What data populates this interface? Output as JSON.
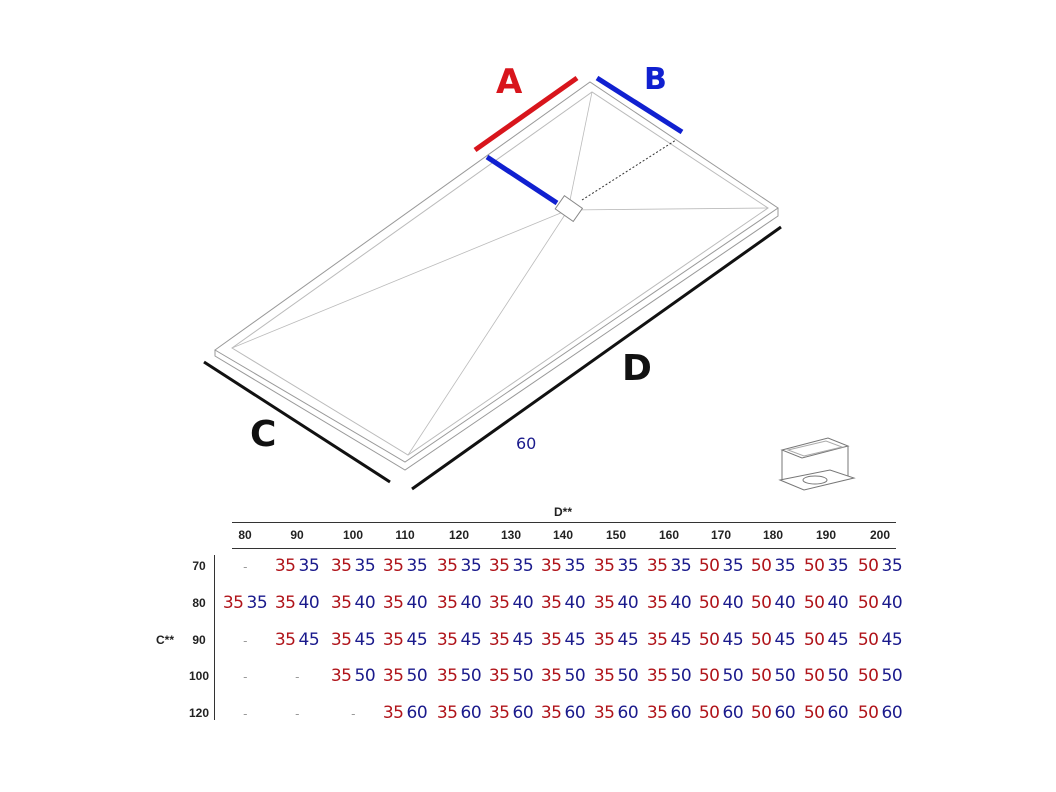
{
  "labels": {
    "A": "A",
    "B": "B",
    "C": "C",
    "D": "D",
    "dim": "60"
  },
  "colors": {
    "A": "#d8151c",
    "B": "#1020d0",
    "sideA": "#b0141a",
    "sideB": "#1a1a8c"
  },
  "table": {
    "column_header": "D**",
    "row_header": "C**",
    "columns": [
      "80",
      "90",
      "100",
      "110",
      "120",
      "130",
      "140",
      "150",
      "160",
      "170",
      "180",
      "190",
      "200"
    ],
    "rows": [
      {
        "label": "70",
        "cells": [
          null,
          [
            "35",
            "35"
          ],
          [
            "35",
            "35"
          ],
          [
            "35",
            "35"
          ],
          [
            "35",
            "35"
          ],
          [
            "35",
            "35"
          ],
          [
            "35",
            "35"
          ],
          [
            "35",
            "35"
          ],
          [
            "35",
            "35"
          ],
          [
            "50",
            "35"
          ],
          [
            "50",
            "35"
          ],
          [
            "50",
            "35"
          ],
          [
            "50",
            "35"
          ]
        ]
      },
      {
        "label": "80",
        "cells": [
          [
            "35",
            "35"
          ],
          [
            "35",
            "40"
          ],
          [
            "35",
            "40"
          ],
          [
            "35",
            "40"
          ],
          [
            "35",
            "40"
          ],
          [
            "35",
            "40"
          ],
          [
            "35",
            "40"
          ],
          [
            "35",
            "40"
          ],
          [
            "35",
            "40"
          ],
          [
            "50",
            "40"
          ],
          [
            "50",
            "40"
          ],
          [
            "50",
            "40"
          ],
          [
            "50",
            "40"
          ]
        ]
      },
      {
        "label": "90",
        "cells": [
          null,
          [
            "35",
            "45"
          ],
          [
            "35",
            "45"
          ],
          [
            "35",
            "45"
          ],
          [
            "35",
            "45"
          ],
          [
            "35",
            "45"
          ],
          [
            "35",
            "45"
          ],
          [
            "35",
            "45"
          ],
          [
            "35",
            "45"
          ],
          [
            "50",
            "45"
          ],
          [
            "50",
            "45"
          ],
          [
            "50",
            "45"
          ],
          [
            "50",
            "45"
          ]
        ]
      },
      {
        "label": "100",
        "cells": [
          null,
          null,
          [
            "35",
            "50"
          ],
          [
            "35",
            "50"
          ],
          [
            "35",
            "50"
          ],
          [
            "35",
            "50"
          ],
          [
            "35",
            "50"
          ],
          [
            "35",
            "50"
          ],
          [
            "35",
            "50"
          ],
          [
            "50",
            "50"
          ],
          [
            "50",
            "50"
          ],
          [
            "50",
            "50"
          ],
          [
            "50",
            "50"
          ]
        ]
      },
      {
        "label": "120",
        "cells": [
          null,
          null,
          null,
          [
            "35",
            "60"
          ],
          [
            "35",
            "60"
          ],
          [
            "35",
            "60"
          ],
          [
            "35",
            "60"
          ],
          [
            "35",
            "60"
          ],
          [
            "35",
            "60"
          ],
          [
            "50",
            "60"
          ],
          [
            "50",
            "60"
          ],
          [
            "50",
            "60"
          ],
          [
            "50",
            "60"
          ]
        ]
      }
    ],
    "empty_mark": "-"
  }
}
